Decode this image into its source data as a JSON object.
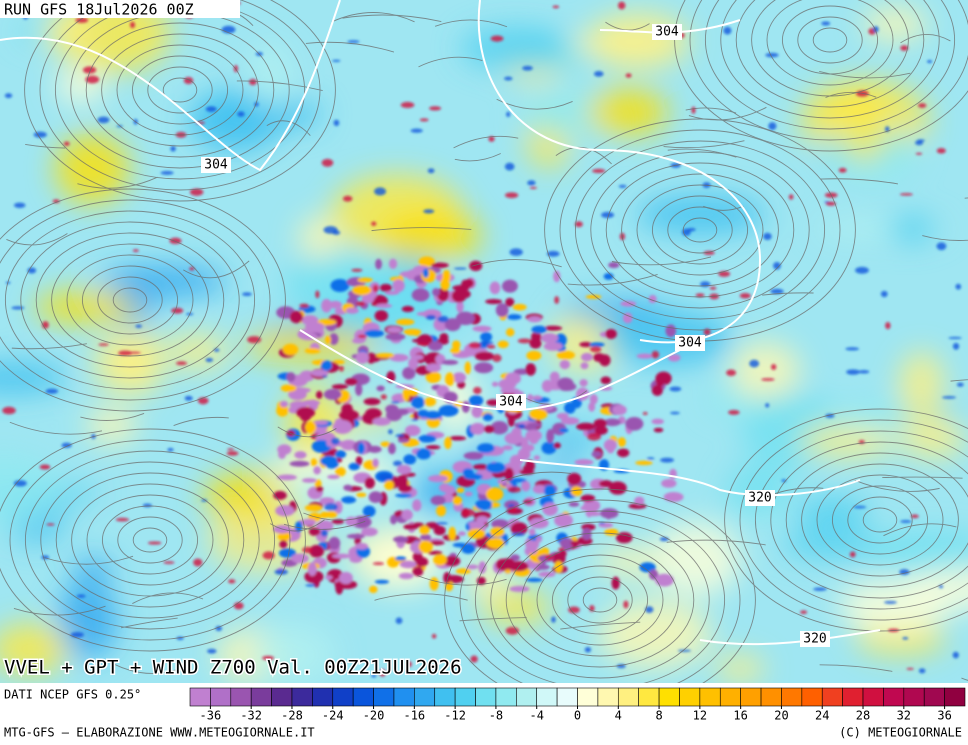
{
  "run_label": "RUN GFS 18Jul2026 00Z",
  "map_title": "VVEL + GPT + WIND Z700 Val. 00Z21JUL2026",
  "contour_labels": [
    304,
    304,
    304,
    304,
    320,
    320
  ],
  "colorbar": {
    "source": "DATI NCEP GFS 0.25°",
    "range": [
      -38,
      38
    ],
    "ticks": [
      -36,
      -32,
      -28,
      -24,
      -20,
      -16,
      -12,
      -8,
      -4,
      0,
      4,
      8,
      12,
      16,
      20,
      24,
      28,
      32,
      36
    ],
    "colors": [
      "#c080d0",
      "#b070c8",
      "#9a55b0",
      "#7a3c9c",
      "#5a2a90",
      "#3c2a9c",
      "#2030b0",
      "#1040c8",
      "#0a55dc",
      "#1070e8",
      "#2090f0",
      "#30a8f0",
      "#40c0f0",
      "#50d0f0",
      "#70e0f0",
      "#90eaf0",
      "#b0f0f0",
      "#d0f8f8",
      "#e8fcfc",
      "#ffffd8",
      "#fff8b0",
      "#fff080",
      "#ffe840",
      "#ffe000",
      "#ffd000",
      "#ffc000",
      "#ffb000",
      "#ffa000",
      "#ff9000",
      "#ff7800",
      "#ff6000",
      "#f04020",
      "#e02030",
      "#d01040",
      "#c00850",
      "#b00850",
      "#a00850",
      "#900040"
    ]
  },
  "footer": {
    "left": "MTG-GFS — ELABORAZIONE WWW.METEOGIORNALE.IT",
    "right": "(C) METEOGIORNALE"
  }
}
